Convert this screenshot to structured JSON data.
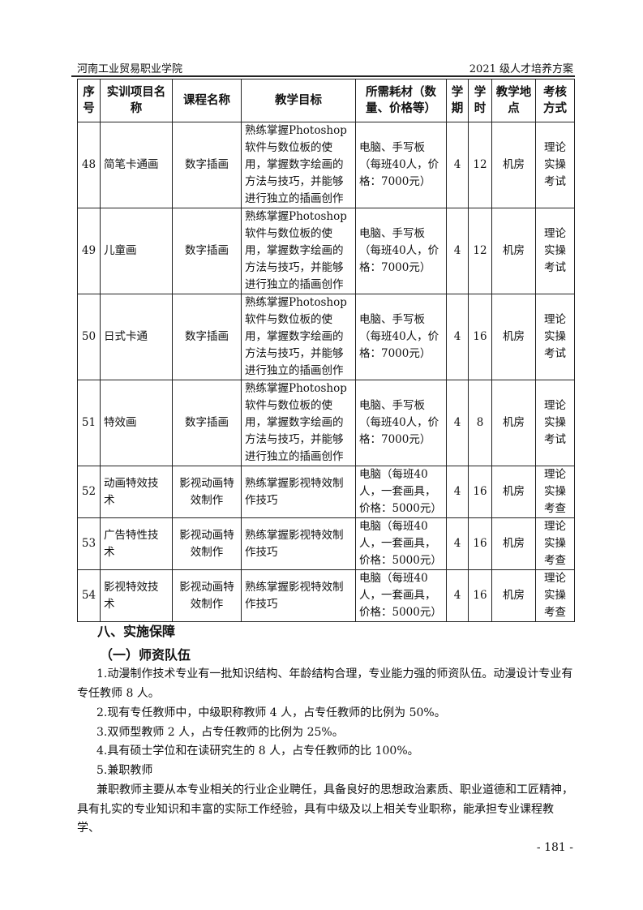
{
  "header": {
    "left": "河南工业贸易职业学院",
    "right": "2021 级人才培养方案"
  },
  "table": {
    "columns": [
      "序号",
      "实训项目名称",
      "课程名称",
      "教学目标",
      "所需耗材（数量、价格等）",
      "学期",
      "学时",
      "教学地点",
      "考核方式"
    ],
    "rows": [
      [
        "48",
        "简笔卡通画",
        "数字插画",
        "熟练掌握Photoshop软件与数位板的使用，掌握数字绘画的方法与技巧，并能够进行独立的插画创作",
        "电脑、手写板（每班40人，价格：7000元）",
        "4",
        "12",
        "机房",
        "理论实操考试"
      ],
      [
        "49",
        "儿童画",
        "数字插画",
        "熟练掌握Photoshop软件与数位板的使用，掌握数字绘画的方法与技巧，并能够进行独立的插画创作",
        "电脑、手写板（每班40人，价格：7000元）",
        "4",
        "12",
        "机房",
        "理论实操考试"
      ],
      [
        "50",
        "日式卡通",
        "数字插画",
        "熟练掌握Photoshop软件与数位板的使用，掌握数字绘画的方法与技巧，并能够进行独立的插画创作",
        "电脑、手写板（每班40人，价格：7000元）",
        "4",
        "16",
        "机房",
        "理论实操考试"
      ],
      [
        "51",
        "特效画",
        "数字插画",
        "熟练掌握Photoshop软件与数位板的使用，掌握数字绘画的方法与技巧，并能够进行独立的插画创作",
        "电脑、手写板（每班40人，价格：7000元）",
        "4",
        "8",
        "机房",
        "理论实操考试"
      ],
      [
        "52",
        "动画特效技术",
        "影视动画特效制作",
        "熟练掌握影视特效制作技巧",
        "电脑（每班40人，一套画具，价格：5000元）",
        "4",
        "16",
        "机房",
        "理论实操考查"
      ],
      [
        "53",
        "广告特性技术",
        "影视动画特效制作",
        "熟练掌握影视特效制作技巧",
        "电脑（每班40人，一套画具，价格：5000元）",
        "4",
        "16",
        "机房",
        "理论实操考查"
      ],
      [
        "54",
        "影视特效技术",
        "影视动画特效制作",
        "熟练掌握影视特效制作技巧",
        "电脑（每班40人，一套画具，价格：5000元）",
        "4",
        "16",
        "机房",
        "理论实操考查"
      ]
    ]
  },
  "section": {
    "title": "八、实施保障",
    "subtitle": "（一）师资队伍"
  },
  "paragraphs": [
    "1.动漫制作技术专业有一批知识结构、年龄结构合理，专业能力强的师资队伍。动漫设计专业有专任教师 8 人。",
    "2.现有专任教师中，中级职称教师 4 人，占专任教师的比例为 50%。",
    "3.双师型教师 2 人，占专任教师的比例为 25%。",
    "4.具有硕士学位和在读研究生的 8 人，占专任教师的比 100%。",
    "5.兼职教师",
    "兼职教师主要从本专业相关的行业企业聘任，具备良好的思想政治素质、职业道德和工匠精神，具有扎实的专业知识和丰富的实际工作经验，具有中级及以上相关专业职称，能承担专业课程教学、"
  ],
  "page_number": "- 181 -"
}
